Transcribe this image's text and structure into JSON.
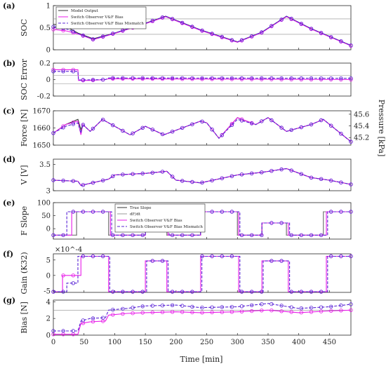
{
  "figure": {
    "xlabel": "Time [min]",
    "x_ticks": [
      0,
      50,
      100,
      150,
      200,
      250,
      300,
      350,
      400,
      450
    ],
    "xlim": [
      0,
      485
    ]
  },
  "chart_data": [
    {
      "type": "line",
      "panel_label": "(a)",
      "ylabel": "SOC",
      "ylim": [
        0,
        1
      ],
      "y_ticks": [
        "0",
        "0.5",
        "1"
      ],
      "legend": {
        "entries": [
          "Model Output",
          "Switch Observer V&F Bias",
          "Switch Observer V&F Bias Mismatch"
        ],
        "placement": "top-left"
      },
      "ref_lines": [
        0.35,
        0.7
      ],
      "series": [
        {
          "name": "Model Output",
          "color": "#333333",
          "dash": "none",
          "x": [
            0,
            20,
            40,
            65,
            100,
            150,
            183,
            240,
            300,
            340,
            380,
            420,
            485
          ],
          "y": [
            0.58,
            0.53,
            0.38,
            0.25,
            0.38,
            0.6,
            0.76,
            0.45,
            0.18,
            0.4,
            0.76,
            0.48,
            0.1
          ]
        },
        {
          "name": "Switch Observer V&F Bias",
          "color": "#e81de8",
          "dash": "none",
          "x": [
            0,
            20,
            40,
            65,
            100,
            150,
            183,
            240,
            300,
            340,
            380,
            420,
            485
          ],
          "y": [
            0.46,
            0.43,
            0.36,
            0.23,
            0.37,
            0.59,
            0.75,
            0.44,
            0.17,
            0.39,
            0.75,
            0.47,
            0.09
          ]
        },
        {
          "name": "Switch Observer V&F Bias Mismatch",
          "color": "#5a24d6",
          "dash": "4,2",
          "x": [
            0,
            20,
            40,
            65,
            100,
            150,
            183,
            240,
            300,
            340,
            380,
            420,
            485
          ],
          "y": [
            0.52,
            0.48,
            0.37,
            0.24,
            0.38,
            0.6,
            0.76,
            0.45,
            0.18,
            0.4,
            0.76,
            0.48,
            0.1
          ]
        }
      ]
    },
    {
      "type": "line",
      "panel_label": "(b)",
      "ylabel": "SOC Error",
      "ylim": [
        -0.2,
        0.2
      ],
      "y_ticks": [
        "-0.2",
        "0",
        "0.2"
      ],
      "ref_lines": [
        0.05,
        -0.05
      ],
      "series": [
        {
          "name": "Switch Observer V&F Bias",
          "color": "#e81de8",
          "dash": "none",
          "x": [
            0,
            40,
            41,
            60,
            85,
            90,
            485
          ],
          "y": [
            0.12,
            0.12,
            -0.01,
            -0.01,
            0.0,
            0.01,
            0.0
          ]
        },
        {
          "name": "Switch Observer V&F Bias Mismatch",
          "color": "#5a24d6",
          "dash": "4,2",
          "x": [
            0,
            40,
            41,
            85,
            90,
            485
          ],
          "y": [
            0.1,
            0.1,
            -0.005,
            0.0,
            0.02,
            0.015
          ]
        }
      ]
    },
    {
      "type": "line",
      "panel_label": "(c)",
      "ylabel": "Force [N]",
      "ylabel_right": "Pressure [kPa]",
      "ylim": [
        1650,
        1670
      ],
      "y_ticks": [
        "1650",
        "1660",
        "1670"
      ],
      "y_ticks_right": [
        "45.2",
        "45.4",
        "45.6"
      ],
      "series": [
        {
          "name": "Model Output",
          "color": "#333333",
          "dash": "none",
          "x": [
            0,
            20,
            40,
            45,
            48,
            60,
            80,
            125,
            150,
            180,
            210,
            240,
            250,
            270,
            300,
            330,
            350,
            380,
            420,
            440,
            485
          ],
          "y": [
            1657,
            1662,
            1665,
            1659,
            1662,
            1658,
            1665,
            1656,
            1661,
            1656,
            1660,
            1664,
            1663,
            1654,
            1666,
            1662,
            1666,
            1658,
            1662,
            1665,
            1652
          ]
        },
        {
          "name": "Switch Observer V&F Bias",
          "color": "#e81de8",
          "dash": "none",
          "x": [
            0,
            20,
            40,
            45,
            48,
            60,
            80,
            125,
            150,
            180,
            210,
            240,
            250,
            270,
            300,
            330,
            350,
            380,
            420,
            440,
            485
          ],
          "y": [
            1657,
            1662,
            1664,
            1656,
            1662,
            1658,
            1665,
            1656,
            1661,
            1656,
            1660,
            1664,
            1663,
            1654,
            1666,
            1662,
            1666,
            1658,
            1662,
            1665,
            1652
          ]
        },
        {
          "name": "Switch Observer V&F Bias Mismatch",
          "color": "#5a24d6",
          "dash": "4,2",
          "x": [
            0,
            20,
            40,
            45,
            48,
            60,
            80,
            125,
            150,
            180,
            210,
            240,
            250,
            270,
            300,
            330,
            350,
            380,
            420,
            440,
            485
          ],
          "y": [
            1657,
            1661,
            1663,
            1657,
            1662,
            1658,
            1665,
            1656,
            1661,
            1656,
            1660,
            1664,
            1663,
            1654,
            1665,
            1662,
            1666,
            1658,
            1662,
            1665,
            1652
          ]
        }
      ]
    },
    {
      "type": "line",
      "panel_label": "(d)",
      "ylabel": "V [V]",
      "ylim": [
        3,
        3.6
      ],
      "y_ticks": [
        "3",
        "3.5"
      ],
      "series": [
        {
          "name": "Model Output",
          "color": "#333333",
          "dash": "none",
          "x": [
            0,
            40,
            45,
            90,
            100,
            150,
            185,
            200,
            240,
            300,
            340,
            380,
            420,
            450,
            485
          ],
          "y": [
            3.2,
            3.18,
            3.1,
            3.22,
            3.3,
            3.33,
            3.37,
            3.2,
            3.15,
            3.3,
            3.35,
            3.42,
            3.25,
            3.2,
            3.12
          ]
        },
        {
          "name": "Switch Observer V&F Bias",
          "color": "#e81de8",
          "dash": "none",
          "x": [
            0,
            40,
            45,
            90,
            100,
            150,
            185,
            200,
            240,
            300,
            340,
            380,
            420,
            450,
            485
          ],
          "y": [
            3.2,
            3.18,
            3.1,
            3.22,
            3.3,
            3.33,
            3.37,
            3.2,
            3.15,
            3.3,
            3.35,
            3.42,
            3.25,
            3.2,
            3.12
          ]
        },
        {
          "name": "Switch Observer V&F Bias Mismatch",
          "color": "#5a24d6",
          "dash": "4,2",
          "x": [
            0,
            40,
            45,
            90,
            100,
            150,
            185,
            200,
            240,
            300,
            340,
            380,
            420,
            450,
            485
          ],
          "y": [
            3.2,
            3.18,
            3.1,
            3.22,
            3.3,
            3.33,
            3.37,
            3.2,
            3.15,
            3.3,
            3.35,
            3.42,
            3.25,
            3.2,
            3.12
          ]
        }
      ]
    },
    {
      "type": "line",
      "panel_label": "(e)",
      "ylabel": "F Slope",
      "ylim": [
        -40,
        100
      ],
      "y_ticks": [
        "0",
        "50",
        "100"
      ],
      "legend": {
        "entries": [
          "True Slope",
          "dF/dt",
          "Switch Observer V&F Bias",
          "Switch Observer V&F Bias Mismatch"
        ],
        "placement": "top-center"
      },
      "series": [
        {
          "name": "True Slope",
          "color": "#333333",
          "dash": "none",
          "x": [
            0,
            38,
            38,
            90,
            90,
            120,
            120,
            150,
            150,
            185,
            185,
            240,
            240,
            300,
            300,
            340,
            340,
            380,
            380,
            440,
            440,
            485
          ],
          "y": [
            -25,
            -25,
            65,
            65,
            -25,
            -25,
            -25,
            -25,
            22,
            22,
            -25,
            -25,
            65,
            65,
            -25,
            -25,
            22,
            22,
            -25,
            -25,
            65,
            65
          ]
        },
        {
          "name": "dF/dt",
          "color": "#999999",
          "dash": "none",
          "x": [
            0,
            38,
            38,
            90,
            90,
            150,
            150,
            185,
            185,
            240,
            240,
            300,
            300,
            340,
            340,
            380,
            380,
            440,
            440,
            485
          ],
          "y": [
            -25,
            -25,
            65,
            65,
            -25,
            -25,
            22,
            22,
            -25,
            -25,
            65,
            65,
            -25,
            -25,
            22,
            22,
            -25,
            -25,
            65,
            65
          ]
        },
        {
          "name": "Switch Observer V&F Bias",
          "color": "#e81de8",
          "dash": "none",
          "x": [
            0,
            30,
            30,
            93,
            93,
            150,
            150,
            187,
            187,
            240,
            240,
            302,
            302,
            340,
            340,
            383,
            383,
            445,
            445,
            485
          ],
          "y": [
            -25,
            -25,
            65,
            65,
            -25,
            -25,
            22,
            22,
            -25,
            -25,
            65,
            65,
            -25,
            -25,
            22,
            22,
            -25,
            -25,
            65,
            65
          ]
        },
        {
          "name": "Switch Observer V&F Bias Mismatch",
          "color": "#5a24d6",
          "dash": "4,2",
          "x": [
            0,
            22,
            22,
            95,
            95,
            150,
            150,
            189,
            189,
            240,
            240,
            304,
            304,
            340,
            340,
            385,
            385,
            447,
            447,
            485
          ],
          "y": [
            -25,
            -25,
            65,
            65,
            -25,
            -25,
            22,
            22,
            -25,
            -25,
            65,
            65,
            -25,
            -25,
            22,
            22,
            -25,
            -25,
            65,
            65
          ]
        }
      ]
    },
    {
      "type": "line",
      "panel_label": "(f)",
      "ylabel": "Gain (K32)",
      "ylim": [
        -5.5,
        7
      ],
      "y_ticks": [
        "-5",
        "0",
        "5"
      ],
      "scale_note": "×10^-4",
      "series": [
        {
          "name": "Switch Observer V&F Bias",
          "color": "#e81de8",
          "dash": "none",
          "x": [
            0,
            15,
            15,
            45,
            45,
            90,
            90,
            150,
            150,
            185,
            185,
            240,
            240,
            302,
            302,
            340,
            340,
            383,
            383,
            445,
            445,
            485
          ],
          "y": [
            -5.3,
            -5.3,
            0,
            0,
            6.2,
            6.2,
            -5.3,
            -5.3,
            4.7,
            4.7,
            -5.3,
            -5.3,
            6.2,
            6.2,
            -5.3,
            -5.3,
            4.7,
            4.7,
            -5.3,
            -5.3,
            6.2,
            6.2
          ]
        },
        {
          "name": "Switch Observer V&F Bias Mismatch",
          "color": "#5a24d6",
          "dash": "4,2",
          "x": [
            0,
            22,
            22,
            40,
            40,
            92,
            92,
            152,
            152,
            187,
            187,
            242,
            242,
            304,
            304,
            342,
            342,
            385,
            385,
            447,
            447,
            485
          ],
          "y": [
            -5.3,
            -5.3,
            -2.5,
            -2.5,
            6.2,
            6.2,
            -5.3,
            -5.3,
            4.7,
            4.7,
            -5.3,
            -5.3,
            6.2,
            6.2,
            -5.3,
            -5.3,
            4.7,
            4.7,
            -5.3,
            -5.3,
            6.2,
            6.2
          ]
        }
      ]
    },
    {
      "type": "line",
      "panel_label": "(g)",
      "ylabel": "Bias [N]",
      "ylim": [
        0,
        4.2
      ],
      "y_ticks": [
        "0",
        "2",
        "4"
      ],
      "ref_lines": [
        3
      ],
      "series": [
        {
          "name": "Switch Observer V&F Bias",
          "color": "#e81de8",
          "dash": "none",
          "x": [
            0,
            40,
            45,
            60,
            85,
            90,
            120,
            150,
            200,
            240,
            300,
            350,
            400,
            450,
            485
          ],
          "y": [
            0.1,
            0.1,
            1.4,
            1.6,
            1.7,
            2.4,
            2.6,
            2.7,
            2.8,
            2.7,
            2.8,
            3.0,
            2.7,
            2.9,
            3.0
          ]
        },
        {
          "name": "Switch Observer V&F Bias Mismatch",
          "color": "#5a24d6",
          "dash": "4,2",
          "x": [
            0,
            40,
            45,
            60,
            85,
            90,
            120,
            150,
            200,
            240,
            300,
            350,
            400,
            450,
            485
          ],
          "y": [
            0.5,
            0.5,
            1.7,
            2.0,
            2.1,
            3.0,
            3.2,
            3.5,
            3.6,
            3.3,
            3.4,
            3.8,
            3.2,
            3.4,
            3.7
          ]
        }
      ]
    }
  ]
}
